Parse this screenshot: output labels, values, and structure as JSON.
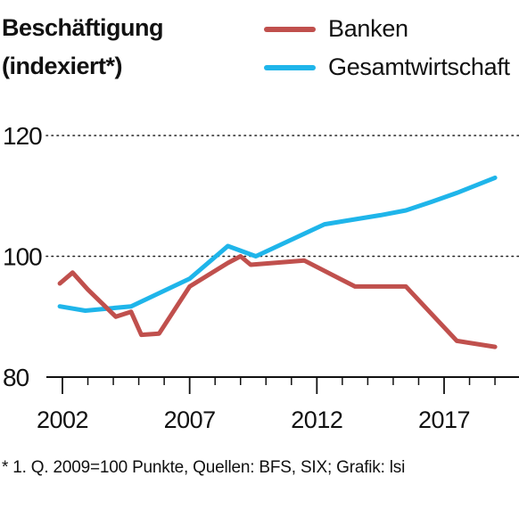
{
  "header": {
    "title_line1": "Beschäftigung",
    "title_line2": "(indexiert*)"
  },
  "footnote": "* 1. Q. 2009=100 Punkte, Quellen: BFS, SIX; Grafik: lsi",
  "chart_data": {
    "type": "line",
    "ylim": [
      80,
      120
    ],
    "yticks": [
      80,
      100,
      120
    ],
    "xlim": [
      2002,
      2019.5
    ],
    "xtick_labels": [
      "2002",
      "2007",
      "2012",
      "2017"
    ],
    "xtick_values": [
      2002,
      2007,
      2012,
      2017
    ],
    "minor_xticks": [
      2003,
      2004,
      2005,
      2006,
      2008,
      2009,
      2010,
      2011,
      2013,
      2014,
      2015,
      2016,
      2018,
      2019
    ],
    "grid": "dotted horizontal",
    "legend": "top-right",
    "series": [
      {
        "name": "Banken",
        "color": "#c0504d",
        "x": [
          2001.9,
          2002.4,
          2003.0,
          2004.1,
          2004.7,
          2005.1,
          2005.8,
          2007.0,
          2008.5,
          2009.0,
          2009.4,
          2011.5,
          2013.5,
          2015.5,
          2016.5,
          2017.5,
          2019.0
        ],
        "y": [
          95.5,
          97.3,
          94.5,
          90.0,
          90.8,
          87.0,
          87.2,
          95.0,
          98.9,
          100.0,
          98.6,
          99.3,
          95.0,
          95.0,
          90.5,
          86.0,
          85.0
        ]
      },
      {
        "name": "Gesamtwirtschaft",
        "color": "#1fb5ea",
        "x": [
          2001.9,
          2002.9,
          2004.7,
          2007.0,
          2008.5,
          2009.6,
          2012.3,
          2014.5,
          2015.5,
          2016.5,
          2017.5,
          2019.0
        ],
        "y": [
          91.7,
          91.0,
          91.7,
          96.3,
          101.7,
          100.0,
          105.3,
          106.8,
          107.6,
          109.0,
          110.5,
          113.0
        ]
      }
    ]
  }
}
